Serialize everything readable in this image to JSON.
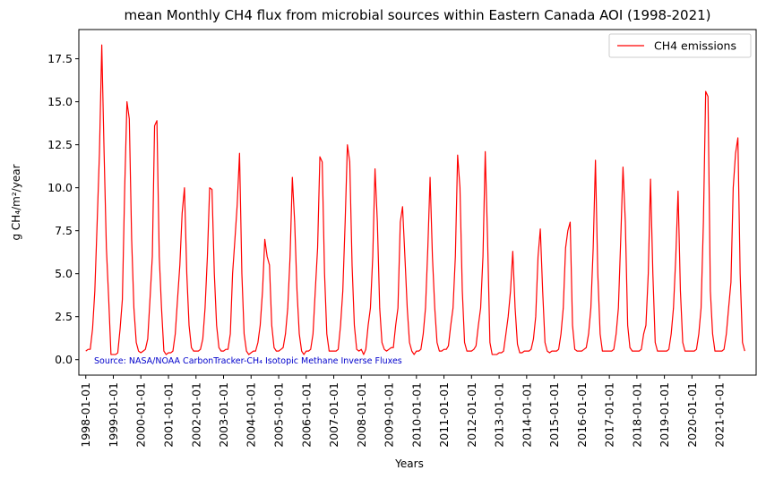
{
  "chart_data": {
    "type": "line",
    "title": "mean Monthly CH4 flux from microbial sources within Eastern Canada AOI (1998-2021)",
    "xlabel": "Years",
    "ylabel": "g CH₄/m²/year",
    "source_note": "Source: NASA/NOAA CarbonTracker-CH₄ Isotopic Methane Inverse Fluxes",
    "legend_position": "top-right",
    "grid": false,
    "xlim": [
      "1997-10-01",
      "2022-05-01"
    ],
    "ylim": [
      -0.9,
      19.2
    ],
    "y_ticks": [
      0.0,
      2.5,
      5.0,
      7.5,
      10.0,
      12.5,
      15.0,
      17.5
    ],
    "y_tick_labels": [
      "0.0",
      "2.5",
      "5.0",
      "7.5",
      "10.0",
      "12.5",
      "15.0",
      "17.5"
    ],
    "x_tick_labels": [
      "1998-01-01",
      "1999-01-01",
      "2000-01-01",
      "2001-01-01",
      "2002-01-01",
      "2003-01-01",
      "2004-01-01",
      "2005-01-01",
      "2006-01-01",
      "2007-01-01",
      "2008-01-01",
      "2009-01-01",
      "2010-01-01",
      "2011-01-01",
      "2012-01-01",
      "2013-01-01",
      "2014-01-01",
      "2015-01-01",
      "2016-01-01",
      "2017-01-01",
      "2018-01-01",
      "2019-01-01",
      "2020-01-01",
      "2021-01-01"
    ],
    "start_date": "1998-01-01",
    "frequency": "monthly",
    "series": [
      {
        "name": "CH4 emissions",
        "color": "#ff0000",
        "values": [
          0.5,
          0.6,
          0.6,
          1.8,
          4.0,
          8.0,
          12.0,
          18.3,
          12.0,
          6.5,
          3.5,
          0.3,
          0.3,
          0.3,
          0.4,
          1.8,
          3.5,
          10.0,
          15.0,
          14.0,
          7.0,
          3.0,
          1.0,
          0.5,
          0.4,
          0.5,
          0.6,
          1.2,
          3.5,
          6.0,
          13.6,
          13.9,
          6.0,
          3.0,
          0.5,
          0.3,
          0.4,
          0.4,
          0.5,
          1.5,
          3.5,
          5.5,
          8.5,
          10.0,
          5.0,
          2.0,
          0.7,
          0.5,
          0.5,
          0.5,
          0.6,
          1.2,
          3.0,
          6.0,
          10.0,
          9.9,
          5.0,
          2.0,
          0.7,
          0.5,
          0.5,
          0.6,
          0.6,
          1.5,
          5.0,
          7.0,
          9.0,
          12.0,
          5.0,
          1.5,
          0.5,
          0.3,
          0.4,
          0.5,
          0.5,
          1.0,
          2.0,
          4.0,
          7.0,
          6.0,
          5.5,
          2.0,
          0.7,
          0.5,
          0.5,
          0.6,
          0.7,
          1.5,
          3.0,
          6.0,
          10.6,
          8.0,
          4.0,
          1.5,
          0.5,
          0.3,
          0.5,
          0.5,
          0.6,
          1.5,
          4.0,
          6.5,
          11.8,
          11.5,
          5.0,
          1.5,
          0.5,
          0.5,
          0.5,
          0.5,
          0.6,
          2.0,
          4.0,
          8.0,
          12.5,
          11.5,
          5.5,
          2.0,
          0.6,
          0.5,
          0.6,
          0.3,
          0.6,
          2.0,
          3.0,
          6.0,
          11.1,
          8.0,
          3.0,
          1.0,
          0.6,
          0.5,
          0.6,
          0.7,
          0.7,
          2.0,
          3.0,
          8.0,
          8.9,
          6.0,
          3.0,
          1.0,
          0.5,
          0.3,
          0.5,
          0.5,
          0.6,
          1.5,
          3.0,
          6.5,
          10.6,
          6.0,
          3.0,
          1.0,
          0.5,
          0.5,
          0.6,
          0.6,
          0.8,
          2.0,
          3.0,
          6.0,
          11.9,
          10.0,
          4.0,
          1.0,
          0.5,
          0.5,
          0.5,
          0.6,
          0.8,
          2.0,
          3.0,
          6.0,
          12.1,
          7.0,
          1.0,
          0.3,
          0.3,
          0.3,
          0.4,
          0.4,
          0.5,
          1.5,
          2.5,
          4.0,
          6.3,
          3.0,
          0.9,
          0.4,
          0.4,
          0.5,
          0.5,
          0.5,
          0.6,
          1.2,
          2.5,
          6.0,
          7.6,
          4.0,
          1.0,
          0.5,
          0.4,
          0.5,
          0.5,
          0.5,
          0.6,
          1.5,
          3.0,
          6.5,
          7.5,
          8.0,
          2.0,
          0.6,
          0.5,
          0.5,
          0.5,
          0.6,
          0.7,
          1.5,
          3.0,
          6.5,
          11.6,
          5.0,
          1.5,
          0.5,
          0.5,
          0.5,
          0.5,
          0.5,
          0.6,
          1.5,
          3.0,
          7.0,
          11.2,
          8.0,
          2.0,
          0.7,
          0.5,
          0.5,
          0.5,
          0.5,
          0.6,
          1.5,
          2.0,
          5.0,
          10.5,
          5.0,
          1.0,
          0.5,
          0.5,
          0.5,
          0.5,
          0.5,
          0.6,
          1.5,
          3.0,
          6.0,
          9.8,
          4.0,
          1.0,
          0.5,
          0.5,
          0.5,
          0.5,
          0.5,
          0.6,
          1.5,
          3.0,
          8.0,
          15.6,
          15.3,
          4.0,
          1.5,
          0.5,
          0.5,
          0.5,
          0.5,
          0.6,
          1.5,
          3.0,
          4.5,
          10.0,
          12.0,
          12.9,
          5.0,
          1.0,
          0.5
        ]
      }
    ]
  }
}
